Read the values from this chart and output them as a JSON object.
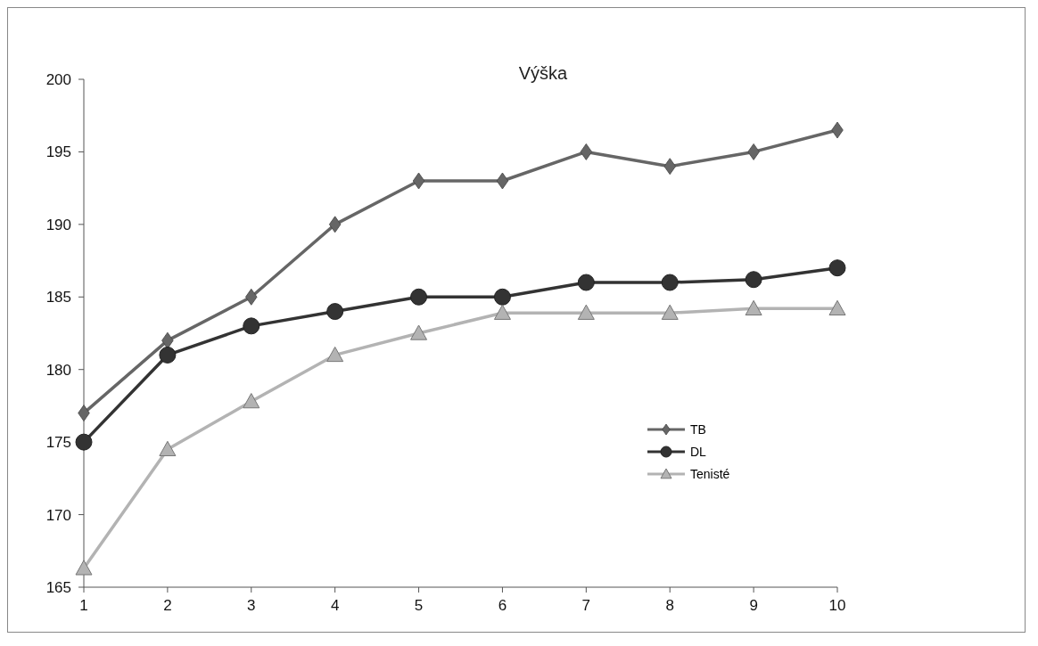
{
  "chart_data": {
    "type": "line",
    "title": "Výška",
    "categories": [
      "1",
      "2",
      "3",
      "4",
      "5",
      "6",
      "7",
      "8",
      "9",
      "10"
    ],
    "series": [
      {
        "name": "TB",
        "color": "#666666",
        "marker": "diamond",
        "values": [
          177,
          182,
          185,
          190,
          193,
          193,
          195,
          194,
          195,
          196.5
        ]
      },
      {
        "name": "DL",
        "color": "#333333",
        "marker": "circle",
        "values": [
          175,
          181,
          183,
          184,
          185,
          185,
          186,
          186,
          186.2,
          187
        ]
      },
      {
        "name": "Tenisté",
        "color": "#b3b3b3",
        "marker": "triangle",
        "values": [
          166.3,
          174.5,
          177.8,
          181,
          182.5,
          183.9,
          183.9,
          183.9,
          184.2,
          184.2
        ]
      }
    ],
    "ylim": [
      165,
      200
    ],
    "yticks": [
      165,
      170,
      175,
      180,
      185,
      190,
      195,
      200
    ],
    "grid": false,
    "legend": "right"
  }
}
